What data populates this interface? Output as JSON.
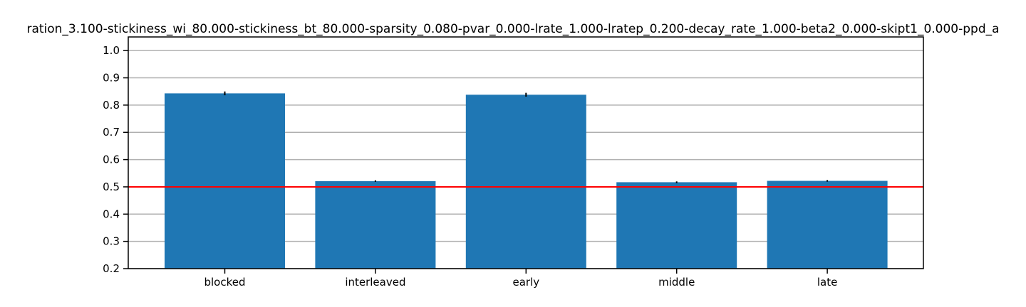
{
  "chart_data": {
    "type": "bar",
    "title": "ration_3.100-stickiness_wi_80.000-stickiness_bt_80.000-sparsity_0.080-pvar_0.000-lrate_1.000-lratep_0.200-decay_rate_1.000-beta2_0.000-skipt1_0.000-ppd_a",
    "xlabel": "",
    "ylabel": "",
    "categories": [
      "blocked",
      "interleaved",
      "early",
      "middle",
      "late"
    ],
    "values": [
      0.843,
      0.521,
      0.838,
      0.517,
      0.522
    ],
    "errors": [
      0.007,
      0.003,
      0.007,
      0.003,
      0.003
    ],
    "ylim": [
      0.2,
      1.05
    ],
    "yticks": [
      "0.2",
      "0.3",
      "0.4",
      "0.5",
      "0.6",
      "0.7",
      "0.8",
      "0.9",
      "1.0"
    ],
    "reference_line": 0.5,
    "grid": "horizontal",
    "colors": {
      "bar": "#1f77b4",
      "reference_line": "#ff0000",
      "grid": "#b0b0b0",
      "error_bar": "#000000"
    }
  }
}
